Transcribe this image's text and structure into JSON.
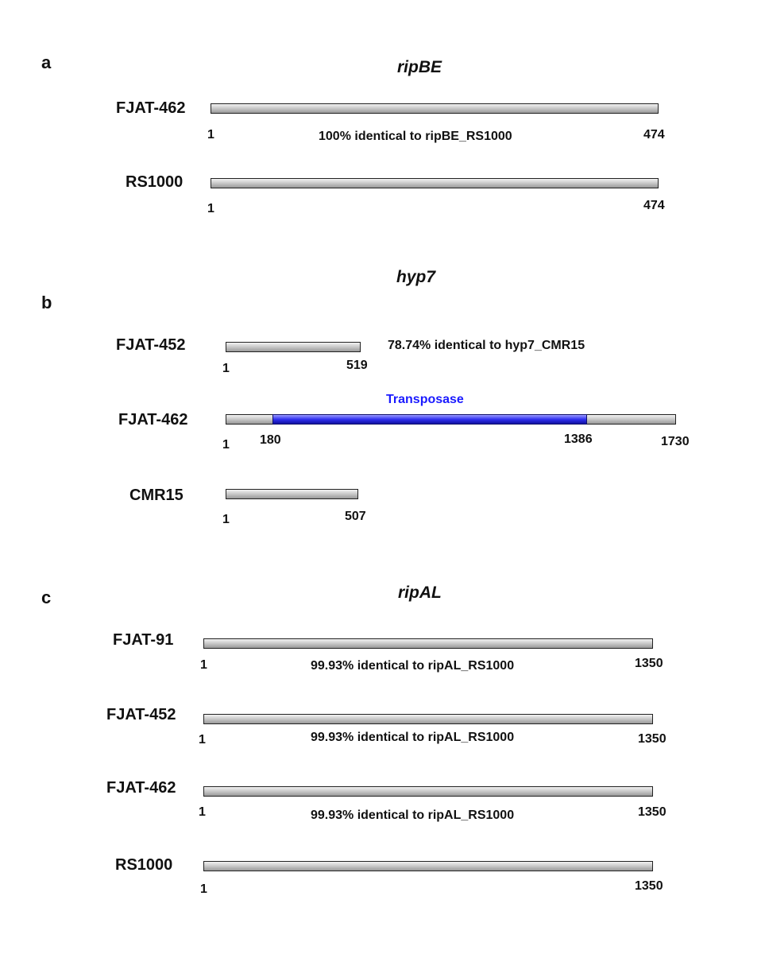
{
  "panels": {
    "a": {
      "letter": "a",
      "title": "ripBE",
      "rows": [
        {
          "strain": "FJAT-462",
          "start": "1",
          "end": "474",
          "note": "100% identical to ripBE_RS1000"
        },
        {
          "strain": "RS1000",
          "start": "1",
          "end": "474"
        }
      ]
    },
    "b": {
      "letter": "b",
      "title": "hyp7",
      "rows": [
        {
          "strain": "FJAT-452",
          "start": "1",
          "end": "519",
          "note": "78.74% identical to hyp7_CMR15"
        },
        {
          "strain": "FJAT-462",
          "start": "1",
          "insert_start": "180",
          "insert_end": "1386",
          "end": "1730",
          "insert_label": "Transposase"
        },
        {
          "strain": "CMR15",
          "start": "1",
          "end": "507"
        }
      ]
    },
    "c": {
      "letter": "c",
      "title": "ripAL",
      "rows": [
        {
          "strain": "FJAT-91",
          "start": "1",
          "end": "1350",
          "note": "99.93% identical to ripAL_RS1000"
        },
        {
          "strain": "FJAT-452",
          "start": "1",
          "end": "1350",
          "note": "99.93% identical to ripAL_RS1000"
        },
        {
          "strain": "FJAT-462",
          "start": "1",
          "end": "1350",
          "note": "99.93% identical to ripAL_RS1000"
        },
        {
          "strain": "RS1000",
          "start": "1",
          "end": "1350"
        }
      ]
    }
  },
  "colors": {
    "gene_bar": "#c0c0c0",
    "transposase": "#2020e0"
  }
}
